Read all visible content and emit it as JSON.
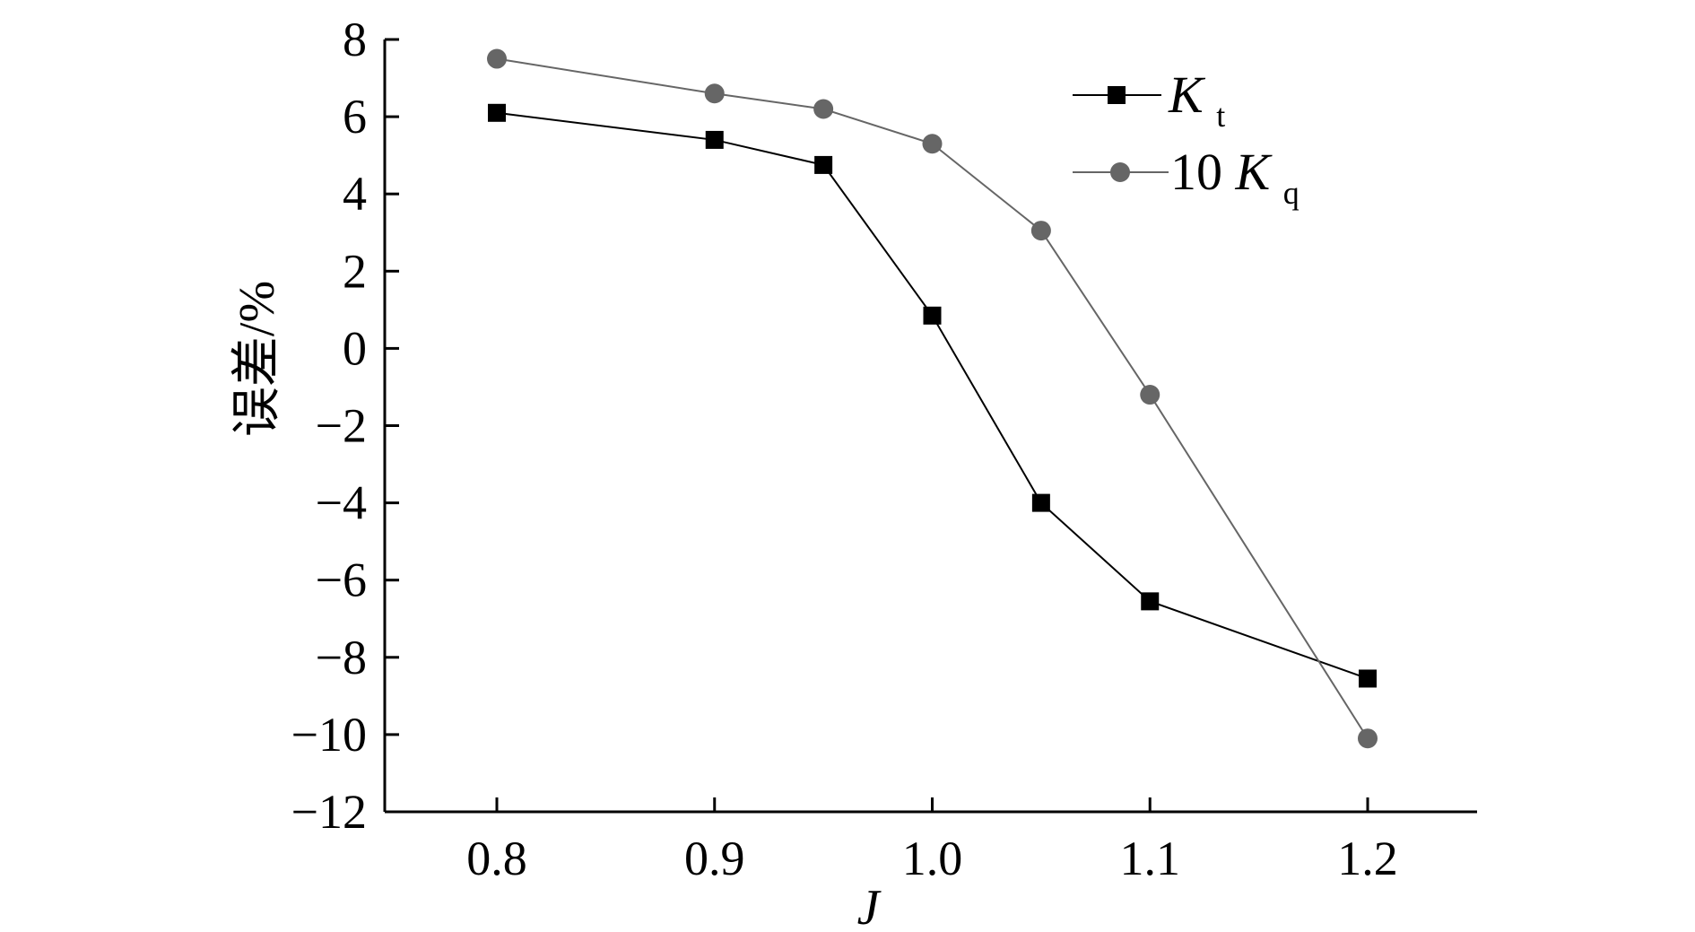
{
  "chart_data": {
    "type": "line",
    "xlabel": "J",
    "ylabel": "误差/%",
    "xlim": [
      0.75,
      1.25
    ],
    "ylim": [
      -12,
      8
    ],
    "x_ticks": [
      0.8,
      0.9,
      1.0,
      1.1,
      1.2
    ],
    "x_tick_labels": [
      "0.8",
      "0.9",
      "1.0",
      "1.1",
      "1.2"
    ],
    "y_ticks": [
      -12,
      -10,
      -8,
      -6,
      -4,
      -2,
      0,
      2,
      4,
      6,
      8
    ],
    "y_tick_labels": [
      "−12",
      "−10",
      "−8",
      "−6",
      "−4",
      "−2",
      "0",
      "2",
      "4",
      "6",
      "8"
    ],
    "grid": false,
    "legend_position": "top-right",
    "series": [
      {
        "name_main": "K",
        "name_sub": "t",
        "marker": "square",
        "color": "#000000",
        "x": [
          0.8,
          0.9,
          0.95,
          1.0,
          1.05,
          1.1,
          1.2
        ],
        "y": [
          6.1,
          5.4,
          4.75,
          0.85,
          -4.0,
          -6.55,
          -8.55
        ]
      },
      {
        "name_prefix": "10",
        "name_main": "K",
        "name_sub": "q",
        "marker": "circle",
        "color": "#666666",
        "x": [
          0.8,
          0.9,
          0.95,
          1.0,
          1.05,
          1.1,
          1.2
        ],
        "y": [
          7.5,
          6.6,
          6.2,
          5.3,
          3.05,
          -1.2,
          -10.1
        ]
      }
    ]
  }
}
